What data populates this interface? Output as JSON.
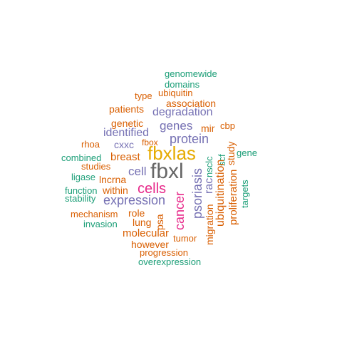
{
  "colors": {
    "teal": "#1b9e77",
    "orange": "#d95f02",
    "purple": "#7570b3",
    "magenta": "#e7298a",
    "gold": "#e6ab02",
    "gray": "#666666"
  },
  "words": [
    {
      "text": "genomewide",
      "color": "teal"
    },
    {
      "text": "domains",
      "color": "teal"
    },
    {
      "text": "type",
      "color": "orange"
    },
    {
      "text": "ubiquitin",
      "color": "orange"
    },
    {
      "text": "association",
      "color": "orange"
    },
    {
      "text": "patients",
      "color": "orange"
    },
    {
      "text": "degradation",
      "color": "purple"
    },
    {
      "text": "genetic",
      "color": "orange"
    },
    {
      "text": "genes",
      "color": "purple"
    },
    {
      "text": "mir",
      "color": "orange"
    },
    {
      "text": "cbp",
      "color": "orange"
    },
    {
      "text": "identified",
      "color": "purple"
    },
    {
      "text": "protein",
      "color": "purple"
    },
    {
      "text": "rhoa",
      "color": "orange"
    },
    {
      "text": "cxxc",
      "color": "purple"
    },
    {
      "text": "fbox",
      "color": "orange"
    },
    {
      "text": "fbxlas",
      "color": "gold"
    },
    {
      "text": "gene",
      "color": "teal"
    },
    {
      "text": "combined",
      "color": "teal"
    },
    {
      "text": "breast",
      "color": "orange"
    },
    {
      "text": "studies",
      "color": "orange"
    },
    {
      "text": "cell",
      "color": "purple"
    },
    {
      "text": "fbxl",
      "color": "gray"
    },
    {
      "text": "ligase",
      "color": "teal"
    },
    {
      "text": "lncrna",
      "color": "orange"
    },
    {
      "text": "cells",
      "color": "magenta"
    },
    {
      "text": "function",
      "color": "teal"
    },
    {
      "text": "within",
      "color": "orange"
    },
    {
      "text": "stability",
      "color": "teal"
    },
    {
      "text": "expression",
      "color": "purple"
    },
    {
      "text": "mechanism",
      "color": "orange"
    },
    {
      "text": "role",
      "color": "orange"
    },
    {
      "text": "invasion",
      "color": "teal"
    },
    {
      "text": "lung",
      "color": "orange"
    },
    {
      "text": "molecular",
      "color": "orange"
    },
    {
      "text": "tumor",
      "color": "orange"
    },
    {
      "text": "however",
      "color": "orange"
    },
    {
      "text": "progression",
      "color": "orange"
    },
    {
      "text": "overexpression",
      "color": "teal"
    },
    {
      "text": "cancer",
      "color": "magenta"
    },
    {
      "text": "psoriasis",
      "color": "purple"
    },
    {
      "text": "psa",
      "color": "orange"
    },
    {
      "text": "rac",
      "color": "purple"
    },
    {
      "text": "nsclc",
      "color": "teal"
    },
    {
      "text": "scf",
      "color": "teal"
    },
    {
      "text": "study",
      "color": "orange"
    },
    {
      "text": "migration",
      "color": "orange"
    },
    {
      "text": "ubiquitination",
      "color": "orange"
    },
    {
      "text": "proliferation",
      "color": "orange"
    },
    {
      "text": "targets",
      "color": "teal"
    }
  ]
}
